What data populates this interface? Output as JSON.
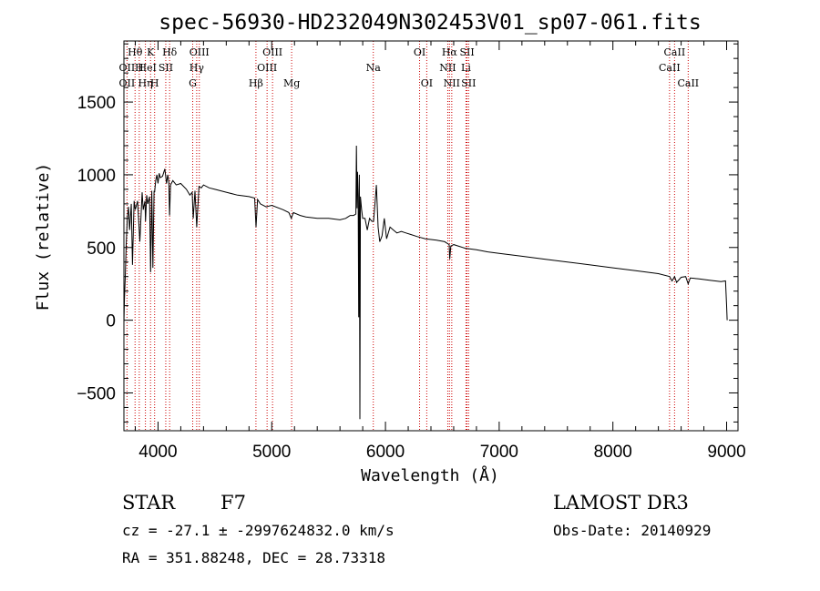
{
  "chart_data": {
    "type": "line",
    "title": "spec-56930-HD232049N302453V01_sp07-061.fits",
    "xlabel": "Wavelength (Å)",
    "ylabel": "Flux (relative)",
    "xlim": [
      3700,
      9100
    ],
    "ylim": [
      -760,
      1920
    ],
    "xticks": [
      4000,
      5000,
      6000,
      7000,
      8000,
      9000
    ],
    "xtick_labels": [
      "4000",
      "5000",
      "6000",
      "7000",
      "8000",
      "9000"
    ],
    "yticks": [
      -500,
      0,
      500,
      1000,
      1500
    ],
    "ytick_labels": [
      "−500",
      "0",
      "500",
      "1000",
      "1500"
    ],
    "series": [
      {
        "name": "spectrum",
        "x": [
          3700,
          3705,
          3712,
          3720,
          3730,
          3740,
          3750,
          3765,
          3775,
          3790,
          3800,
          3820,
          3840,
          3860,
          3870,
          3885,
          3890,
          3900,
          3910,
          3925,
          3935,
          3945,
          3955,
          3965,
          3970,
          3980,
          3990,
          4000,
          4010,
          4020,
          4040,
          4060,
          4075,
          4085,
          4095,
          4101,
          4110,
          4130,
          4160,
          4200,
          4250,
          4280,
          4300,
          4310,
          4325,
          4340,
          4360,
          4380,
          4400,
          4450,
          4500,
          4600,
          4700,
          4800,
          4850,
          4862,
          4875,
          4900,
          4950,
          5000,
          5100,
          5150,
          5172,
          5190,
          5250,
          5300,
          5400,
          5500,
          5600,
          5650,
          5690,
          5700,
          5720,
          5740,
          5745,
          5750,
          5754,
          5760,
          5765,
          5770,
          5775,
          5780,
          5790,
          5800,
          5820,
          5840,
          5860,
          5880,
          5895,
          5910,
          5920,
          5935,
          5950,
          5970,
          5990,
          6010,
          6040,
          6070,
          6100,
          6140,
          6180,
          6220,
          6280,
          6350,
          6450,
          6520,
          6560,
          6565,
          6575,
          6600,
          6700,
          6800,
          6900,
          7000,
          7200,
          7400,
          7600,
          7800,
          8000,
          8200,
          8400,
          8498,
          8520,
          8542,
          8560,
          8600,
          8640,
          8662,
          8680,
          8750,
          8850,
          8950,
          8990,
          9000,
          9005
        ],
        "values": [
          -20,
          150,
          300,
          520,
          700,
          780,
          620,
          800,
          380,
          820,
          760,
          820,
          540,
          880,
          760,
          820,
          680,
          860,
          800,
          850,
          330,
          890,
          360,
          890,
          880,
          960,
          1000,
          940,
          1010,
          980,
          990,
          1040,
          940,
          1000,
          950,
          720,
          930,
          960,
          930,
          940,
          900,
          860,
          880,
          700,
          890,
          640,
          920,
          910,
          930,
          910,
          900,
          880,
          860,
          850,
          840,
          640,
          830,
          800,
          780,
          790,
          760,
          740,
          700,
          740,
          720,
          710,
          700,
          700,
          690,
          700,
          720,
          720,
          720,
          730,
          1200,
          770,
          1020,
          860,
          20,
          1000,
          -680,
          850,
          760,
          700,
          700,
          620,
          700,
          680,
          680,
          820,
          930,
          640,
          540,
          580,
          700,
          560,
          640,
          620,
          600,
          610,
          600,
          590,
          575,
          560,
          550,
          540,
          520,
          420,
          510,
          520,
          495,
          485,
          470,
          460,
          440,
          420,
          400,
          380,
          360,
          340,
          320,
          300,
          270,
          300,
          260,
          295,
          300,
          250,
          290,
          285,
          275,
          265,
          270,
          100,
          0
        ]
      }
    ],
    "lines_top": [
      {
        "label": "Hθ",
        "x": 3798
      },
      {
        "label": "K",
        "x": 3934
      },
      {
        "label": "Hδ",
        "x": 4102
      },
      {
        "label": "OIII",
        "x": 4363
      },
      {
        "label": "OIII",
        "x": 5007
      },
      {
        "label": "OI",
        "x": 6300
      },
      {
        "label": "Hα",
        "x": 6563
      },
      {
        "label": "SII",
        "x": 6717
      },
      {
        "label": "CaII",
        "x": 8542
      }
    ],
    "lines_mid": [
      {
        "label": "OII",
        "x": 3727
      },
      {
        "label": "H",
        "x": 3835
      },
      {
        "label": "He",
        "x": 3889
      },
      {
        "label": "I",
        "x": 3970
      },
      {
        "label": "SII",
        "x": 4068
      },
      {
        "label": "Hγ",
        "x": 4340
      },
      {
        "label": "OIII",
        "x": 4959
      },
      {
        "label": "Na",
        "x": 5893
      },
      {
        "label": "NII",
        "x": 6548
      },
      {
        "label": "Li",
        "x": 6708
      },
      {
        "label": "CaII",
        "x": 8498
      }
    ],
    "lines_bot": [
      {
        "label": "OII",
        "x": 3727
      },
      {
        "label": "Hη",
        "x": 3889
      },
      {
        "label": "H",
        "x": 3970
      },
      {
        "label": "G",
        "x": 4305
      },
      {
        "label": "Hβ",
        "x": 4861
      },
      {
        "label": "Mg",
        "x": 5175
      },
      {
        "label": "OI",
        "x": 6363
      },
      {
        "label": "NII",
        "x": 6583
      },
      {
        "label": "SII",
        "x": 6731
      },
      {
        "label": "CaII",
        "x": 8662
      }
    ],
    "marker_lines": [
      3727,
      3798,
      3835,
      3889,
      3934,
      3970,
      4068,
      4102,
      4305,
      4340,
      4363,
      4861,
      4959,
      5007,
      5175,
      5893,
      6300,
      6363,
      6548,
      6563,
      6583,
      6708,
      6717,
      6731,
      8498,
      8542,
      8662
    ]
  },
  "info": {
    "object_type": "STAR",
    "subclass": "F7",
    "survey": "LAMOST DR3",
    "cz_line": "cz = -27.1 ± -2997624832.0 km/s",
    "obs_date_line": "Obs-Date: 20140929",
    "coords_line": "RA = 351.88248, DEC =  28.73318"
  },
  "colors": {
    "line_marker": "#cc0000",
    "spectrum": "#000000",
    "axes": "#000000"
  }
}
